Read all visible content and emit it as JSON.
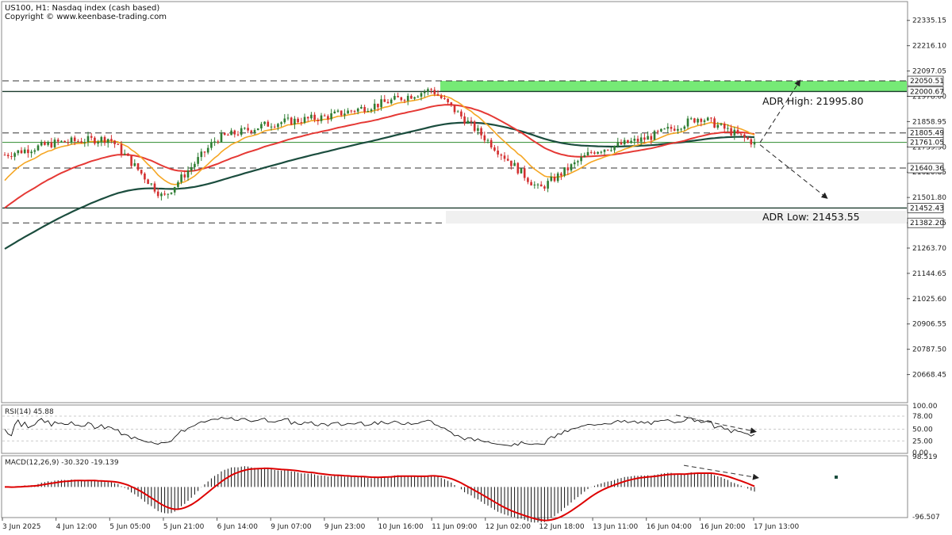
{
  "header": {
    "symbol_line": "US100, H1:  Nasdaq index (cash based)",
    "copyright": "Copyright © www.keenbase-trading.com"
  },
  "colors": {
    "bull": "#2e7d32",
    "bear": "#d32f2f",
    "ema_fast": "#f5a623",
    "ema_mid": "#e53935",
    "ema_slow": "#1b4d3e",
    "zone": "#5ee65e",
    "grid": "#c8c8c8",
    "dashed": "#333333"
  },
  "annotations": {
    "adr_high": "ADR High: 21995.80",
    "adr_low": "ADR Low: 21453.55"
  },
  "chart_data": [
    {
      "type": "candlestick",
      "title": "US100, H1: Nasdaq index (cash based)",
      "ylim": [
        20540,
        22420
      ],
      "x_tick_labels": [
        "3 Jun 2025",
        "4 Jun 12:00",
        "5 Jun 05:00",
        "5 Jun 21:00",
        "6 Jun 14:00",
        "9 Jun 07:00",
        "9 Jun 23:00",
        "10 Jun 16:00",
        "11 Jun 09:00",
        "12 Jun 02:00",
        "12 Jun 18:00",
        "13 Jun 11:00",
        "16 Jun 04:00",
        "16 Jun 20:00",
        "17 Jun 13:00"
      ],
      "y_tick_labels": [
        "22335.15",
        "22216.10",
        "22097.05",
        "21978.00",
        "21858.95",
        "21739.90",
        "21620.85",
        "21501.80",
        "21382.75",
        "21263.70",
        "21144.65",
        "21025.60",
        "20906.55",
        "20787.50",
        "20668.45"
      ],
      "price_levels": [
        {
          "label": "22050.51",
          "value": 22050.51,
          "style": "dashed"
        },
        {
          "label": "22000.67",
          "value": 22000.67,
          "style": "solid"
        },
        {
          "label": "21805.49",
          "value": 21805.49,
          "style": "dashed"
        },
        {
          "label": "21761.05",
          "value": 21761.05,
          "style": "solid-green"
        },
        {
          "label": "21640.36",
          "value": 21640.36,
          "style": "dashed"
        },
        {
          "label": "21452.43",
          "value": 21452.43,
          "style": "solid"
        },
        {
          "label": "21382.20",
          "value": 21382.2,
          "style": "dashed"
        }
      ],
      "zone": {
        "from": 22000.67,
        "to": 22050.51
      },
      "key_closes": [
        {
          "x": "3 Jun 2025",
          "close": 21700
        },
        {
          "x": "4 Jun 12:00",
          "close": 21760
        },
        {
          "x": "5 Jun 05:00",
          "close": 21780
        },
        {
          "x": "5 Jun 21:00",
          "close": 21500
        },
        {
          "x": "6 Jun 14:00",
          "close": 21780
        },
        {
          "x": "9 Jun 07:00",
          "close": 21850
        },
        {
          "x": "9 Jun 23:00",
          "close": 21880
        },
        {
          "x": "10 Jun 16:00",
          "close": 21940
        },
        {
          "x": "11 Jun 09:00",
          "close": 22010
        },
        {
          "x": "12 Jun 02:00",
          "close": 21780
        },
        {
          "x": "12 Jun 18:00",
          "close": 21540
        },
        {
          "x": "13 Jun 11:00",
          "close": 21720
        },
        {
          "x": "16 Jun 04:00",
          "close": 21780
        },
        {
          "x": "16 Jun 20:00",
          "close": 21880
        },
        {
          "x": "17 Jun 13:00",
          "close": 21760
        }
      ]
    },
    {
      "type": "line",
      "title": "RSI(14) 45.88",
      "ylim": [
        0,
        100
      ],
      "y_tick_labels": [
        "100.00",
        "78.00",
        "50.00",
        "25.00",
        "0.00"
      ],
      "guide_levels": [
        78,
        50,
        25
      ]
    },
    {
      "type": "bar",
      "title": "MACD(12,26,9) -30.320 -19.139",
      "ylim": [
        -96.507,
        98.519
      ],
      "y_tick_labels": [
        "98.519",
        "-96.507"
      ]
    }
  ]
}
